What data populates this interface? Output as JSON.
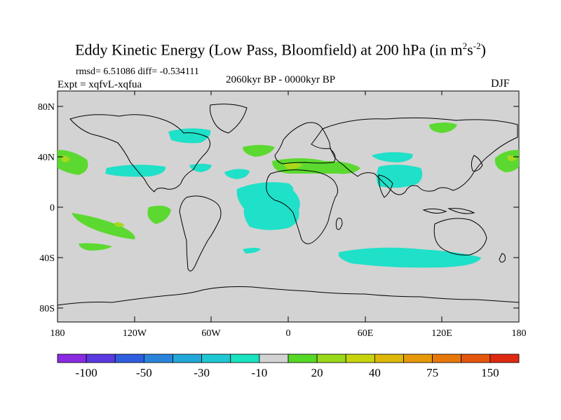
{
  "title": "Eddy Kinetic Energy (Low Pass, Bloomfield) at 200 hPa (in m",
  "title_unit_sup1": "2",
  "title_unit_mid": "s",
  "title_unit_sup2": "-2",
  "title_close": ")",
  "stats_text": "rmsd= 6.51086 diff= -0.534111",
  "experiment_text": "Expt = xqfvL-xqfua",
  "period_text": "2060kyr BP - 0000kyr BP",
  "season_text": "DJF",
  "lat_ticks": [
    "80N",
    "40N",
    "0",
    "40S",
    "80S"
  ],
  "lon_ticks": [
    "180",
    "120W",
    "60W",
    "0",
    "60E",
    "120E",
    "180"
  ],
  "colorbar": {
    "colors": [
      "#8a2be2",
      "#5a3ae0",
      "#2f5ee0",
      "#2a84dc",
      "#22a8d8",
      "#1ec8d2",
      "#19e3c0",
      "#d3d3d3",
      "#56d926",
      "#9ad81a",
      "#c6d40e",
      "#ddb80a",
      "#e69a0a",
      "#e6780a",
      "#e4560c",
      "#de2a10"
    ],
    "labels": [
      "-100",
      "-50",
      "-30",
      "-10",
      "20",
      "40",
      "75",
      "150"
    ],
    "label_after_box_index": [
      1,
      3,
      5,
      7,
      9,
      11,
      13,
      15
    ]
  },
  "colors": {
    "land_background": "#d3d3d3",
    "anomaly_negative": "#1fe0c8",
    "anomaly_positive": "#5cd930",
    "anomaly_positive_strong": "#a8d81c"
  }
}
